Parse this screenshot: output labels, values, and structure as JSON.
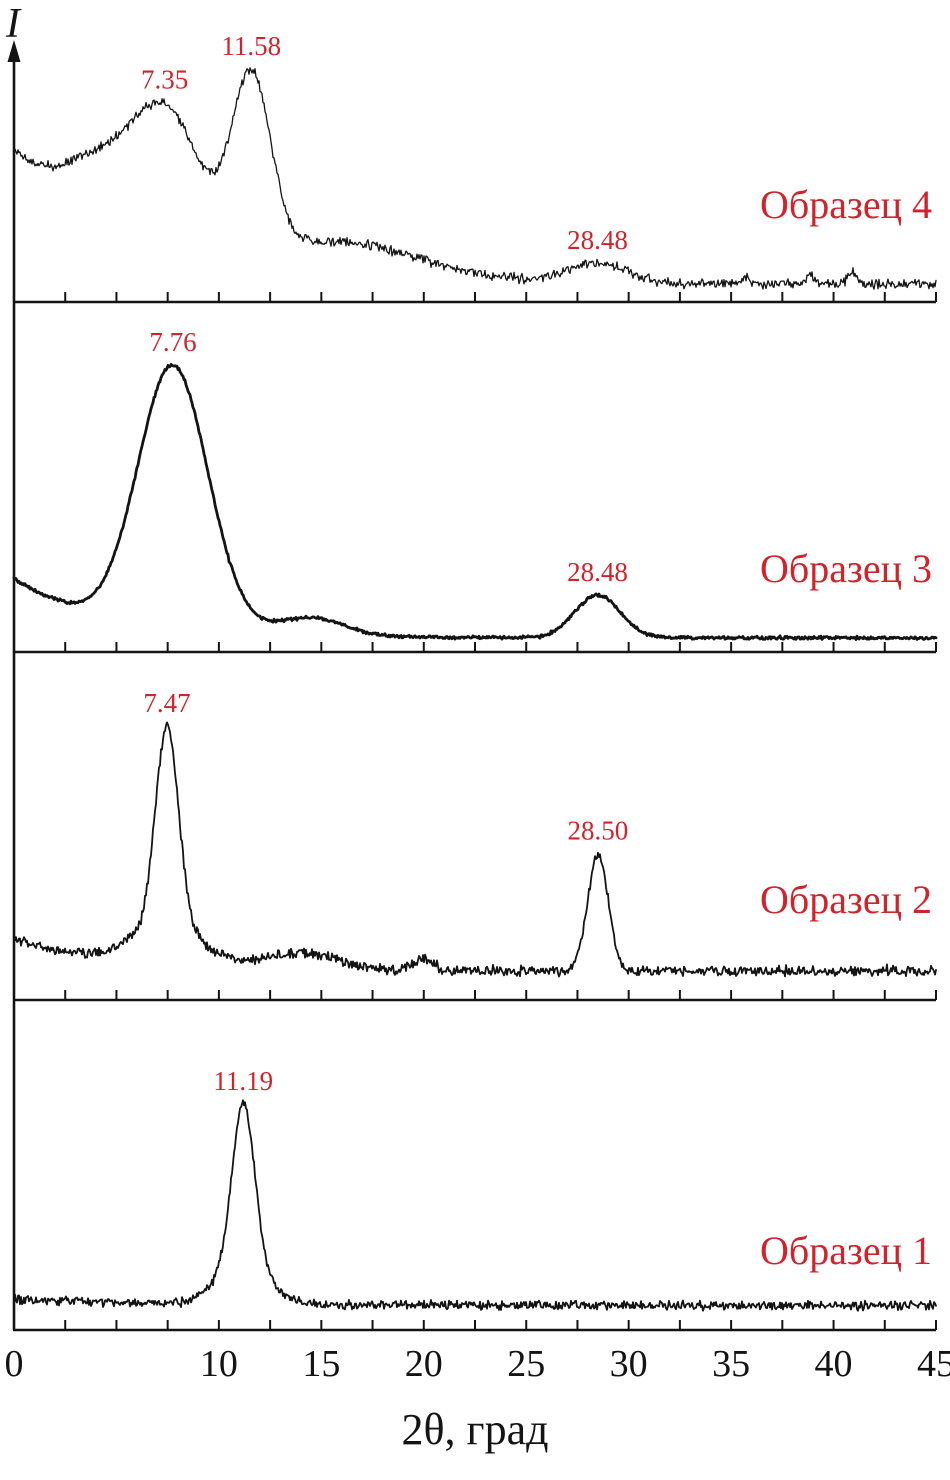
{
  "chart_data": {
    "type": "line",
    "title": "",
    "xlabel": "2θ, град",
    "ylabel": "I",
    "xlim": [
      0,
      45
    ],
    "x_tick_step": 2.5,
    "x_tick_labels": [
      {
        "value": 0,
        "text": "0"
      },
      {
        "value": 10,
        "text": "10"
      },
      {
        "value": 15,
        "text": "15"
      },
      {
        "value": 20,
        "text": "20"
      },
      {
        "value": 25,
        "text": "25"
      },
      {
        "value": 30,
        "text": "30"
      },
      {
        "value": 35,
        "text": "35"
      },
      {
        "value": 40,
        "text": "40"
      },
      {
        "value": 45,
        "text": "45"
      }
    ],
    "colors": {
      "curve": "#141414",
      "axis": "#141414",
      "annotation": "#d2232a",
      "background": "#ffffff"
    },
    "legend_position": "right-inside-each-panel",
    "grid": false,
    "panels_top_to_bottom": [
      "Образец 4",
      "Образец 3",
      "Образец 2",
      "Образец 1"
    ],
    "annotated_peaks_summary": [
      {
        "sample": "Образец 4",
        "two_theta": [
          7.35,
          11.58,
          28.48
        ]
      },
      {
        "sample": "Образец 3",
        "two_theta": [
          7.76,
          28.48
        ]
      },
      {
        "sample": "Образец 2",
        "two_theta": [
          7.47,
          28.5
        ]
      },
      {
        "sample": "Образец 1",
        "two_theta": [
          11.19
        ]
      }
    ],
    "series": [
      {
        "name": "Образец 4",
        "label_y_frac": 0.66,
        "line_width": 1.3,
        "noise": 0.018,
        "baseline": {
          "offset": 0.05,
          "amp": 0.6,
          "decay": 7
        },
        "peaks": [
          {
            "center": 4.0,
            "height": 0.18,
            "sigma": 1.5
          },
          {
            "center": 7.35,
            "height": 0.58,
            "sigma": 1.7,
            "annotation": "7.35"
          },
          {
            "center": 11.58,
            "height": 0.77,
            "sigma": 0.95,
            "annotation": "11.58"
          },
          {
            "center": 16.5,
            "height": 0.13,
            "sigma": 3.5
          },
          {
            "center": 28.48,
            "height": 0.085,
            "sigma": 1.4,
            "annotation": "28.48"
          },
          {
            "center": 35.7,
            "height": 0.035,
            "sigma": 0.18
          },
          {
            "center": 38.9,
            "height": 0.05,
            "sigma": 0.15
          },
          {
            "center": 40.9,
            "height": 0.06,
            "sigma": 0.22
          }
        ]
      },
      {
        "name": "Образец 3",
        "label_y_frac": 0.8,
        "line_width": 2.8,
        "noise": 0.004,
        "baseline": {
          "offset": 0.025,
          "amp": 0.18,
          "decay": 4.5
        },
        "peaks": [
          {
            "center": 7.76,
            "height": 0.8,
            "sigma": 1.7,
            "annotation": "7.76"
          },
          {
            "center": 14.5,
            "height": 0.055,
            "sigma": 1.6
          },
          {
            "center": 28.48,
            "height": 0.13,
            "sigma": 1.1,
            "annotation": "28.48"
          }
        ]
      },
      {
        "name": "Образец 2",
        "label_y_frac": 0.75,
        "line_width": 1.8,
        "noise": 0.013,
        "baseline": {
          "offset": 0.07,
          "amp": 0.1,
          "decay": 5
        },
        "peaks": [
          {
            "center": 7.47,
            "height": 0.6,
            "sigma": 0.55,
            "annotation": "7.47"
          },
          {
            "center": 7.47,
            "height": 0.13,
            "sigma": 1.6
          },
          {
            "center": 14.0,
            "height": 0.05,
            "sigma": 1.8
          },
          {
            "center": 20.0,
            "height": 0.035,
            "sigma": 0.5
          },
          {
            "center": 28.5,
            "height": 0.36,
            "sigma": 0.5,
            "annotation": "28.50"
          }
        ]
      },
      {
        "name": "Образец 1",
        "label_y_frac": 0.8,
        "line_width": 1.8,
        "noise": 0.012,
        "baseline": {
          "offset": 0.06,
          "amp": 0.02,
          "decay": 8
        },
        "peaks": [
          {
            "center": 11.19,
            "height": 0.52,
            "sigma": 0.55,
            "annotation": "11.19"
          },
          {
            "center": 11.19,
            "height": 0.13,
            "sigma": 1.2
          }
        ]
      }
    ]
  }
}
